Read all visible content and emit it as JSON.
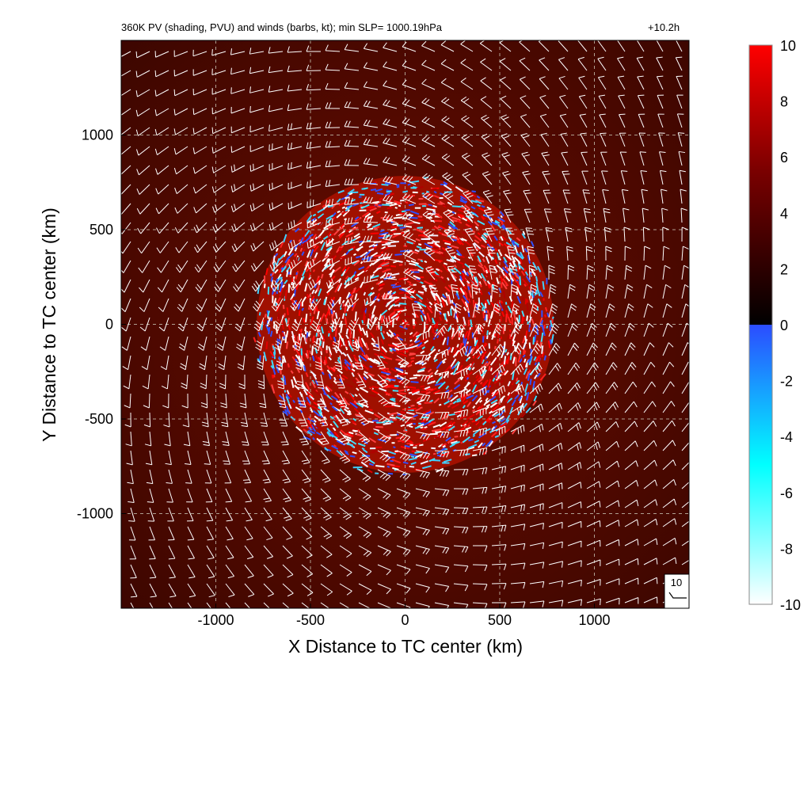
{
  "chart_data": {
    "type": "heatmap",
    "title": "360K PV (shading, PVU) and winds (barbs, kt); min SLP= 1000.19hPa",
    "time_label": "+10.2h",
    "xlabel": "X Distance to TC center (km)",
    "ylabel": "Y Distance to TC center (km)",
    "xlim": [
      -1500,
      1500
    ],
    "ylim": [
      -1500,
      1500
    ],
    "x_ticks": [
      -1000,
      -500,
      0,
      500,
      1000
    ],
    "y_ticks": [
      -1000,
      -500,
      0,
      500,
      1000
    ],
    "x_tick_labels": [
      "-1000",
      "-500",
      "0",
      "500",
      "1000"
    ],
    "y_tick_labels": [
      "-1000",
      "-500",
      "0",
      "500",
      "1000"
    ],
    "grid": true,
    "background_pv": 3,
    "disturbed_region_radius_km": 800,
    "colorbar": {
      "min": -10,
      "max": 10,
      "ticks": [
        10,
        8,
        6,
        4,
        2,
        0,
        -2,
        -4,
        -6,
        -8,
        -10
      ],
      "tick_labels": [
        "10",
        "8",
        "6",
        "4",
        "2",
        "0",
        "-2",
        "-4",
        "-6",
        "-8",
        "-10"
      ],
      "positive_stops": [
        "#000000",
        "#7a0000",
        "#ff0000"
      ],
      "negative_stops": [
        "#2b4cff",
        "#00ffff",
        "#ffffff"
      ]
    },
    "barb_reference": {
      "label": "10",
      "units": "kt"
    },
    "colors": {
      "background": "#5a0a00",
      "barb": "#ffffff",
      "grid": "#b0a090"
    }
  }
}
